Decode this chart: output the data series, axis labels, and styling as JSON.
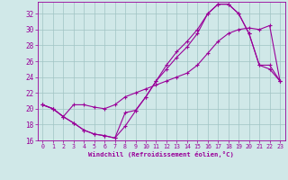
{
  "xlabel": "Windchill (Refroidissement éolien,°C)",
  "background_color": "#d0e8e8",
  "grid_color": "#a0c4c4",
  "line_color": "#990099",
  "xlim": [
    -0.5,
    23.5
  ],
  "ylim": [
    16,
    33.5
  ],
  "yticks": [
    16,
    18,
    20,
    22,
    24,
    26,
    28,
    30,
    32
  ],
  "xticks": [
    0,
    1,
    2,
    3,
    4,
    5,
    6,
    7,
    8,
    9,
    10,
    11,
    12,
    13,
    14,
    15,
    16,
    17,
    18,
    19,
    20,
    21,
    22,
    23
  ],
  "series1_x": [
    0,
    1,
    2,
    3,
    4,
    5,
    6,
    7,
    8,
    9,
    10,
    11,
    12,
    13,
    14,
    15,
    16,
    17,
    18,
    19,
    20,
    21,
    22,
    23
  ],
  "series1_y": [
    20.5,
    20.0,
    19.0,
    18.2,
    17.3,
    16.8,
    16.6,
    16.3,
    17.8,
    19.7,
    21.5,
    23.5,
    25.0,
    26.5,
    27.8,
    29.5,
    32.0,
    33.2,
    33.2,
    32.0,
    29.5,
    25.5,
    25.0,
    23.5
  ],
  "series2_x": [
    0,
    1,
    2,
    3,
    4,
    5,
    6,
    7,
    8,
    9,
    10,
    11,
    12,
    13,
    14,
    15,
    16,
    17,
    18,
    19,
    20,
    21,
    22,
    23
  ],
  "series2_y": [
    20.5,
    20.0,
    19.0,
    20.5,
    20.5,
    20.2,
    20.0,
    20.5,
    21.5,
    22.0,
    22.5,
    23.0,
    23.5,
    24.0,
    24.5,
    25.5,
    27.0,
    28.5,
    29.5,
    30.0,
    30.2,
    30.0,
    30.5,
    23.5
  ],
  "series3_x": [
    0,
    1,
    2,
    3,
    4,
    5,
    6,
    7,
    8,
    9,
    10,
    11,
    12,
    13,
    14,
    15,
    16,
    17,
    18,
    19,
    20,
    21,
    22,
    23
  ],
  "series3_y": [
    20.5,
    20.0,
    19.0,
    18.2,
    17.3,
    16.8,
    16.6,
    16.3,
    19.5,
    19.8,
    21.5,
    23.5,
    25.5,
    27.2,
    28.5,
    30.0,
    32.0,
    33.2,
    33.2,
    32.0,
    29.5,
    25.5,
    25.5,
    23.5
  ]
}
